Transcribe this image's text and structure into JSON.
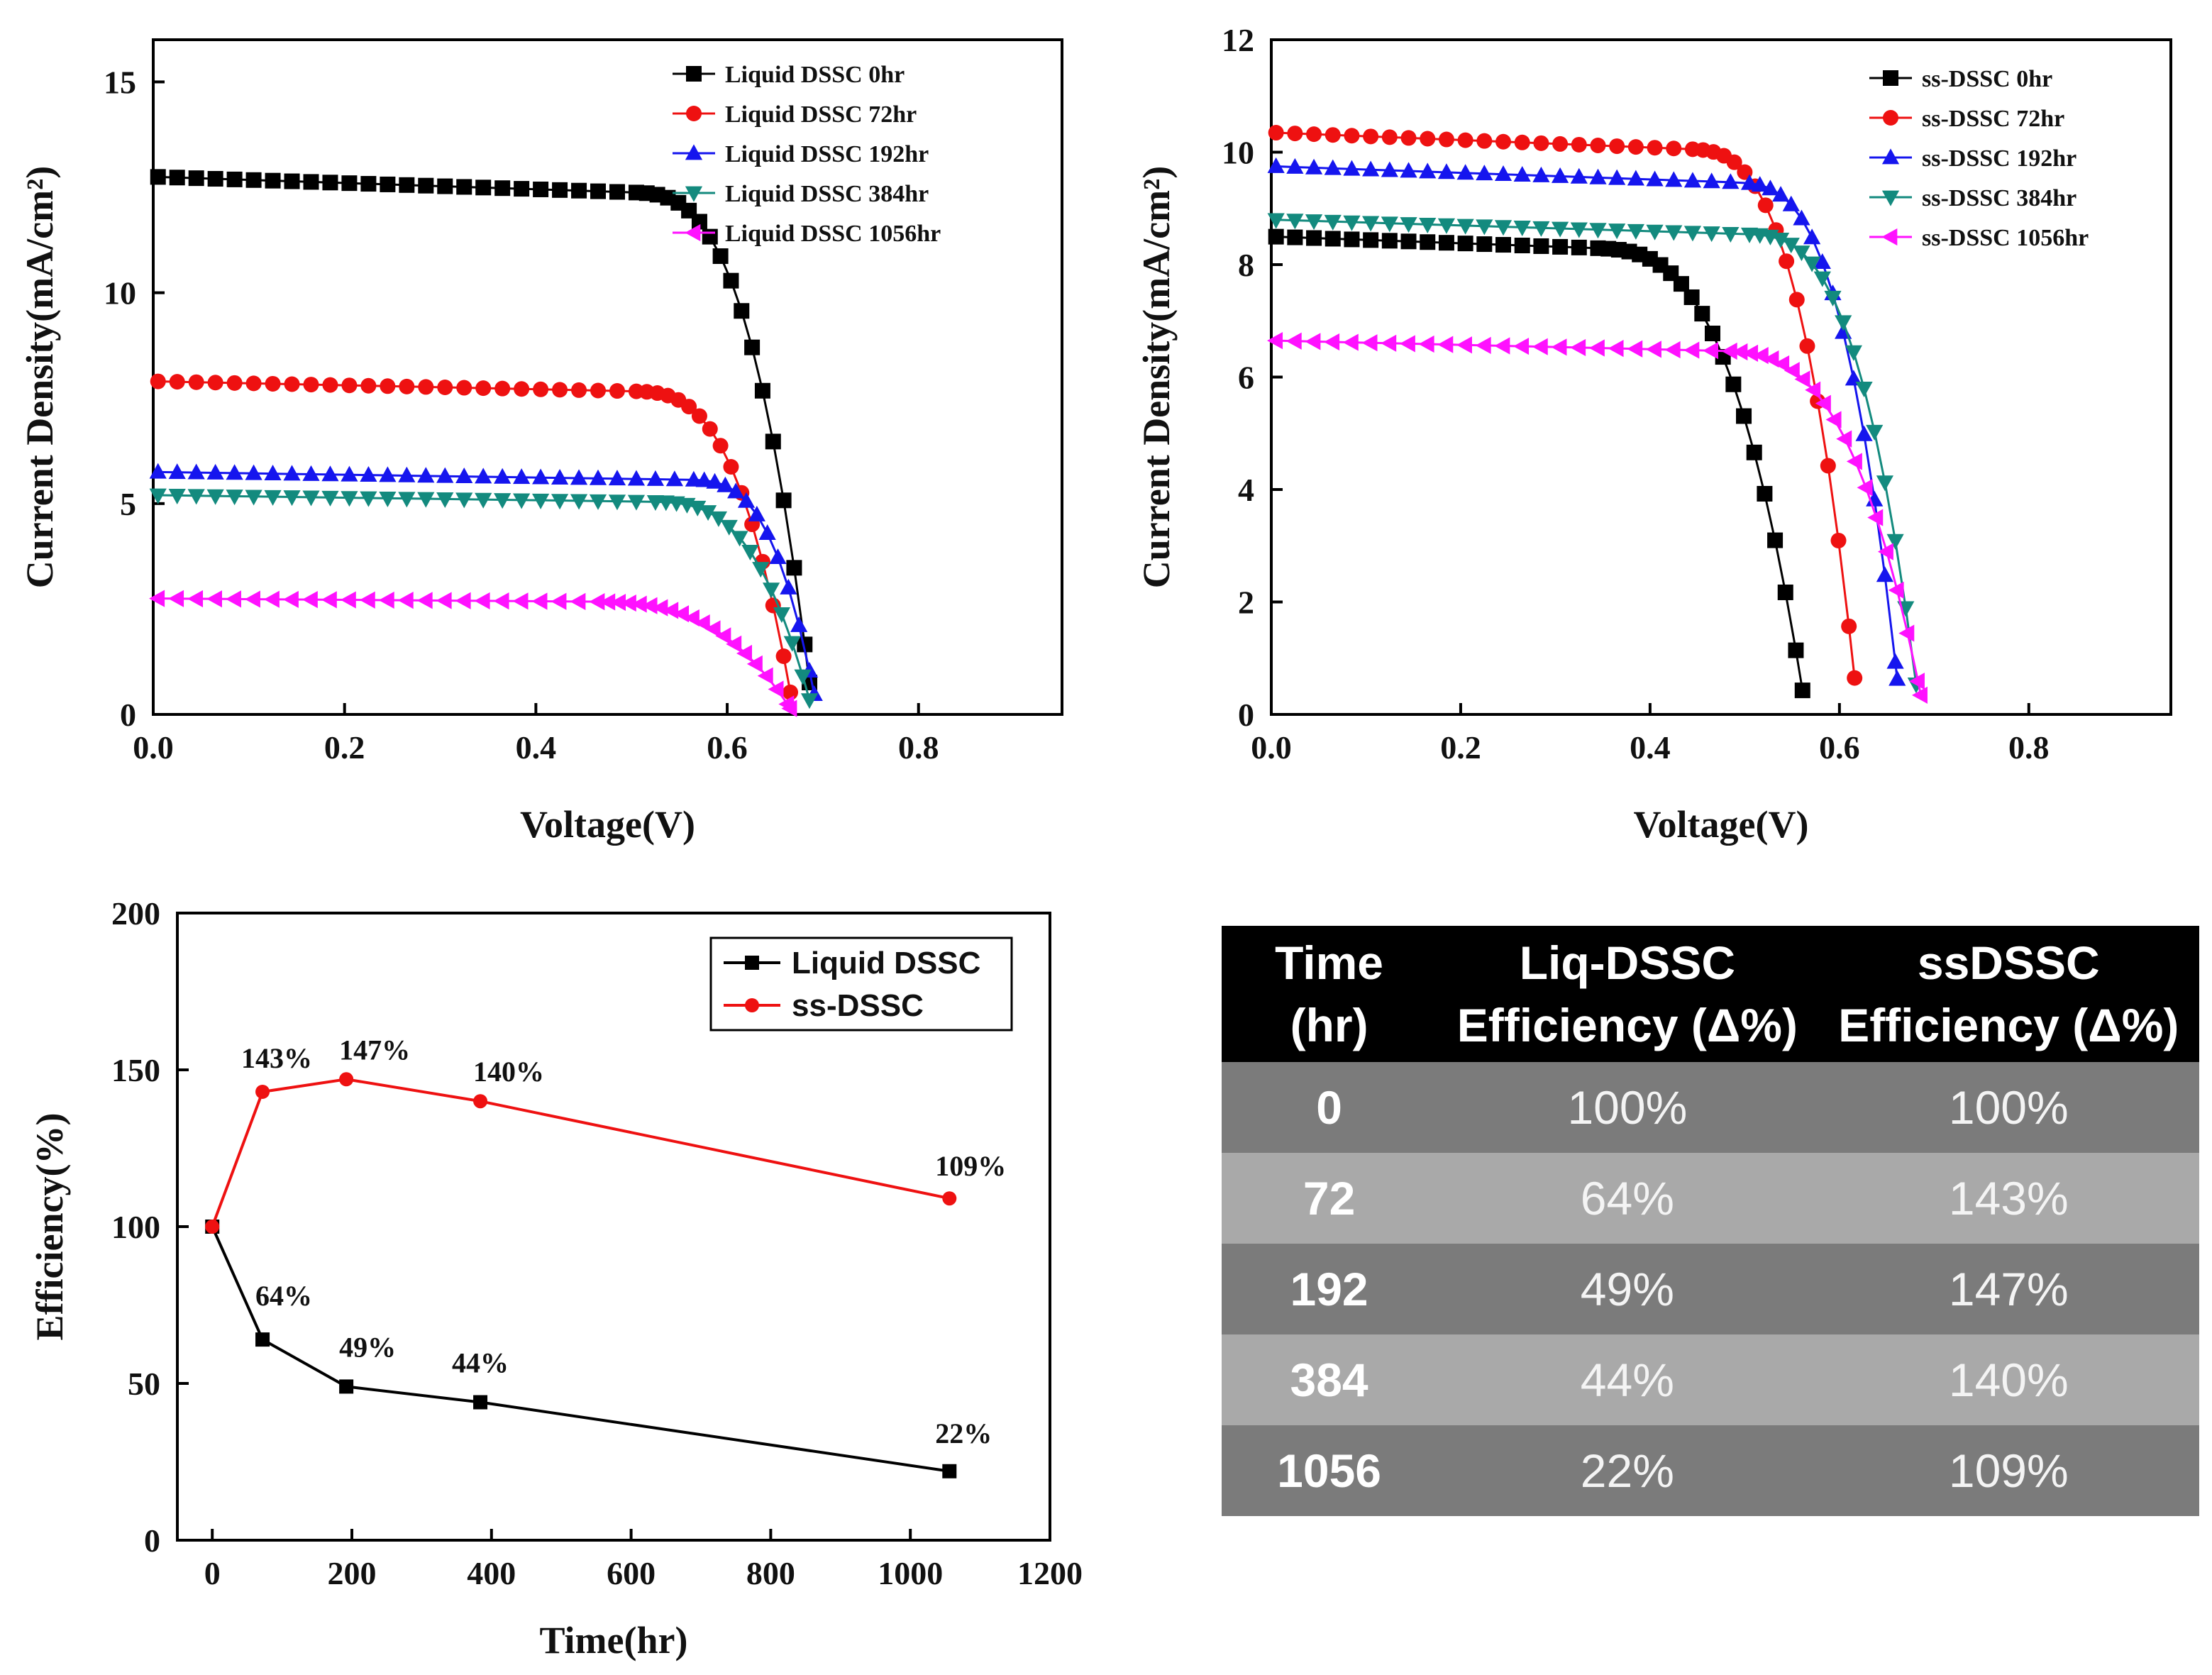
{
  "chart_data": [
    {
      "type": "line",
      "title": "",
      "xlabel": "Voltage(V)",
      "ylabel": "Current Density(mA/cm²)",
      "xlim": [
        0.0,
        0.95
      ],
      "ylim": [
        0,
        16
      ],
      "xticks": [
        0.0,
        0.2,
        0.4,
        0.6,
        0.8
      ],
      "yticks": [
        0,
        5,
        10,
        15
      ],
      "legend_position": "top-right",
      "series": [
        {
          "name": "Liquid DSSC 0hr",
          "color": "#000000",
          "marker": "square",
          "jsc": 12.75,
          "voc": 0.69,
          "knee": 0.5
        },
        {
          "name": "Liquid DSSC 72hr",
          "color": "#ee1111",
          "marker": "circle",
          "jsc": 7.9,
          "voc": 0.67,
          "knee": 0.5
        },
        {
          "name": "Liquid DSSC 192hr",
          "color": "#1515ee",
          "marker": "triangle-up",
          "jsc": 5.75,
          "voc": 0.695,
          "knee": 0.56
        },
        {
          "name": "Liquid DSSC 384hr",
          "color": "#138a7e",
          "marker": "triangle-down",
          "jsc": 5.2,
          "voc": 0.69,
          "knee": 0.52
        },
        {
          "name": "Liquid DSSC 1056hr",
          "color": "#ff11ff",
          "marker": "triangle-left",
          "jsc": 2.75,
          "voc": 0.67,
          "knee": 0.45
        }
      ]
    },
    {
      "type": "line",
      "title": "",
      "xlabel": "Voltage(V)",
      "ylabel": "Current Density(mA/cm²)",
      "xlim": [
        0.0,
        0.95
      ],
      "ylim": [
        0,
        12
      ],
      "xticks": [
        0.0,
        0.2,
        0.4,
        0.6,
        0.8
      ],
      "yticks": [
        0,
        2,
        4,
        6,
        8,
        10,
        12
      ],
      "legend_position": "top-right",
      "series": [
        {
          "name": "ss-DSSC 0hr",
          "color": "#000000",
          "marker": "square",
          "jsc": 8.5,
          "voc": 0.565,
          "knee": 0.34
        },
        {
          "name": "ss-DSSC 72hr",
          "color": "#ee1111",
          "marker": "circle",
          "jsc": 10.35,
          "voc": 0.62,
          "knee": 0.44
        },
        {
          "name": "ss-DSSC 192hr",
          "color": "#1515ee",
          "marker": "triangle-up",
          "jsc": 9.75,
          "voc": 0.665,
          "knee": 0.49
        },
        {
          "name": "ss-DSSC 384hr",
          "color": "#138a7e",
          "marker": "triangle-down",
          "jsc": 8.8,
          "voc": 0.685,
          "knee": 0.5
        },
        {
          "name": "ss-DSSC 1056hr",
          "color": "#ff11ff",
          "marker": "triangle-left",
          "jsc": 6.65,
          "voc": 0.69,
          "knee": 0.47
        }
      ]
    },
    {
      "type": "line",
      "title": "",
      "xlabel": "Time(hr)",
      "ylabel": "Efficiency(%)",
      "xlim": [
        -50,
        1200
      ],
      "ylim": [
        0,
        200
      ],
      "xticks": [
        0,
        200,
        400,
        600,
        800,
        1000,
        1200
      ],
      "yticks": [
        0,
        50,
        100,
        150,
        200
      ],
      "legend_position": "top-right",
      "x": [
        0,
        72,
        192,
        384,
        1056
      ],
      "series": [
        {
          "name": "Liquid DSSC",
          "color": "#000000",
          "marker": "square",
          "values": [
            100,
            64,
            49,
            44,
            22
          ],
          "labels": [
            "",
            "64%",
            "49%",
            "44%",
            "22%"
          ]
        },
        {
          "name": "ss-DSSC",
          "color": "#ee1111",
          "marker": "circle",
          "values": [
            100,
            143,
            147,
            140,
            109
          ],
          "labels": [
            "",
            "143%",
            "147%",
            "140%",
            "109%"
          ]
        }
      ]
    },
    {
      "type": "table",
      "headers": [
        {
          "line1": "Time",
          "line2": "(hr)"
        },
        {
          "line1": "Liq-DSSC",
          "line2": "Efficiency (Δ%)"
        },
        {
          "line1": "ssDSSC",
          "line2": "Efficiency (Δ%)"
        }
      ],
      "rows": [
        [
          "0",
          "100%",
          "100%"
        ],
        [
          "72",
          "64%",
          "143%"
        ],
        [
          "192",
          "49%",
          "147%"
        ],
        [
          "384",
          "44%",
          "140%"
        ],
        [
          "1056",
          "22%",
          "109%"
        ]
      ]
    }
  ]
}
